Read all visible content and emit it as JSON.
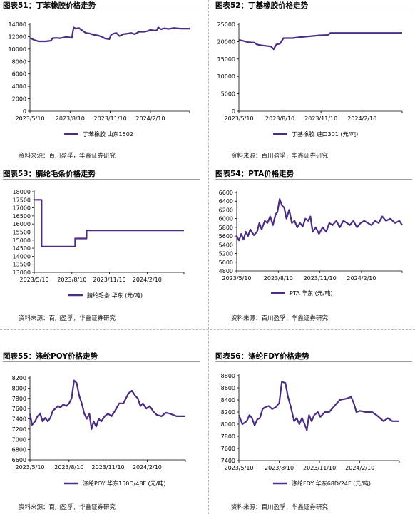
{
  "source_text": "资料来源：百川盈孚，华鑫证券研究",
  "series_color": "#4b2e83",
  "chart_data": [
    {
      "id": "c51",
      "type": "line",
      "title": "图表51：丁苯橡胶价格走势",
      "legend": "丁苯橡胶 山东1502",
      "ylim": [
        0,
        14000
      ],
      "yticks": [
        0,
        2000,
        4000,
        6000,
        8000,
        10000,
        12000,
        14000
      ],
      "xticks": [
        "2023/5/10",
        "2023/8/10",
        "2023/11/10",
        "2024/2/10"
      ],
      "xtick_idx": [
        0,
        92,
        184,
        276
      ],
      "x_len": 366,
      "points": [
        [
          0,
          11800
        ],
        [
          10,
          11450
        ],
        [
          20,
          11250
        ],
        [
          35,
          11250
        ],
        [
          48,
          11350
        ],
        [
          52,
          11750
        ],
        [
          60,
          11800
        ],
        [
          70,
          11750
        ],
        [
          82,
          11950
        ],
        [
          90,
          11900
        ],
        [
          96,
          11800
        ],
        [
          100,
          13500
        ],
        [
          105,
          13300
        ],
        [
          112,
          13400
        ],
        [
          120,
          13000
        ],
        [
          128,
          12600
        ],
        [
          138,
          12500
        ],
        [
          146,
          12300
        ],
        [
          156,
          12200
        ],
        [
          166,
          11950
        ],
        [
          172,
          11700
        ],
        [
          182,
          11600
        ],
        [
          186,
          12300
        ],
        [
          192,
          12500
        ],
        [
          198,
          12600
        ],
        [
          205,
          12100
        ],
        [
          214,
          12400
        ],
        [
          224,
          12500
        ],
        [
          232,
          12600
        ],
        [
          240,
          12400
        ],
        [
          250,
          12800
        ],
        [
          262,
          12800
        ],
        [
          270,
          12900
        ],
        [
          276,
          13100
        ],
        [
          284,
          13000
        ],
        [
          290,
          13000
        ],
        [
          294,
          13500
        ],
        [
          300,
          13200
        ],
        [
          308,
          13350
        ],
        [
          318,
          13250
        ],
        [
          330,
          13400
        ],
        [
          345,
          13300
        ],
        [
          366,
          13300
        ]
      ]
    },
    {
      "id": "c52",
      "type": "line",
      "title": "图表52：丁基橡胶价格走势",
      "legend": "丁基橡胶 进口301 (元/吨)",
      "ylim": [
        0,
        25000
      ],
      "yticks": [
        0,
        5000,
        10000,
        15000,
        20000,
        25000
      ],
      "xticks": [
        "2023/5/10",
        "2023/8/10",
        "2023/11/10",
        "2024/2/10"
      ],
      "xtick_idx": [
        0,
        92,
        184,
        276
      ],
      "x_len": 366,
      "points": [
        [
          0,
          20500
        ],
        [
          10,
          20200
        ],
        [
          22,
          19800
        ],
        [
          35,
          19700
        ],
        [
          40,
          19200
        ],
        [
          48,
          19000
        ],
        [
          60,
          18800
        ],
        [
          72,
          18600
        ],
        [
          78,
          17800
        ],
        [
          84,
          19200
        ],
        [
          92,
          19400
        ],
        [
          100,
          21000
        ],
        [
          120,
          21000
        ],
        [
          132,
          21200
        ],
        [
          180,
          21800
        ],
        [
          200,
          21900
        ],
        [
          205,
          22500
        ],
        [
          366,
          22500
        ]
      ]
    },
    {
      "id": "c53",
      "type": "line",
      "title": "图表53：腈纶毛条价格走势",
      "legend": "腈纶毛条 华东 (元/吨)",
      "ylim": [
        13000,
        18000
      ],
      "yticks": [
        13000,
        13500,
        14000,
        14500,
        15000,
        15500,
        16000,
        16500,
        17000,
        17500,
        18000
      ],
      "xticks": [
        "2023/5/10",
        "2023/8/10",
        "2023/11/10",
        "2024/2/10"
      ],
      "xtick_idx": [
        0,
        92,
        184,
        276
      ],
      "x_len": 366,
      "points": [
        [
          0,
          17500
        ],
        [
          18,
          17500
        ],
        [
          18,
          14600
        ],
        [
          100,
          14600
        ],
        [
          100,
          15100
        ],
        [
          128,
          15100
        ],
        [
          128,
          15600
        ],
        [
          366,
          15600
        ]
      ]
    },
    {
      "id": "c54",
      "type": "line",
      "title": "图表54：PTA价格走势",
      "legend": "PTA 华东 (元/吨)",
      "ylim": [
        4800,
        6600
      ],
      "yticks": [
        4800,
        5000,
        5200,
        5400,
        5600,
        5800,
        6000,
        6200,
        6400,
        6600
      ],
      "xticks": [
        "2023/5/10",
        "2023/8/10",
        "2023/11/10",
        "2024/2/10"
      ],
      "xtick_idx": [
        0,
        92,
        184,
        276
      ],
      "x_len": 366,
      "points": [
        [
          0,
          5600
        ],
        [
          5,
          5500
        ],
        [
          10,
          5650
        ],
        [
          15,
          5520
        ],
        [
          20,
          5700
        ],
        [
          25,
          5600
        ],
        [
          30,
          5750
        ],
        [
          38,
          5620
        ],
        [
          45,
          5700
        ],
        [
          50,
          5900
        ],
        [
          55,
          5750
        ],
        [
          62,
          5950
        ],
        [
          68,
          5900
        ],
        [
          74,
          6050
        ],
        [
          80,
          5850
        ],
        [
          86,
          6100
        ],
        [
          90,
          6150
        ],
        [
          95,
          6450
        ],
        [
          100,
          6300
        ],
        [
          105,
          6250
        ],
        [
          110,
          6000
        ],
        [
          116,
          6200
        ],
        [
          122,
          5900
        ],
        [
          128,
          5950
        ],
        [
          134,
          5800
        ],
        [
          140,
          5900
        ],
        [
          146,
          5820
        ],
        [
          152,
          6000
        ],
        [
          158,
          5950
        ],
        [
          163,
          6050
        ],
        [
          168,
          5700
        ],
        [
          175,
          5800
        ],
        [
          182,
          5650
        ],
        [
          190,
          5800
        ],
        [
          198,
          5700
        ],
        [
          205,
          5900
        ],
        [
          212,
          5850
        ],
        [
          220,
          5950
        ],
        [
          228,
          5800
        ],
        [
          236,
          5950
        ],
        [
          244,
          5900
        ],
        [
          250,
          5850
        ],
        [
          258,
          5950
        ],
        [
          266,
          5800
        ],
        [
          274,
          5900
        ],
        [
          282,
          5950
        ],
        [
          290,
          5900
        ],
        [
          298,
          5850
        ],
        [
          306,
          5950
        ],
        [
          314,
          5900
        ],
        [
          322,
          6050
        ],
        [
          330,
          5950
        ],
        [
          340,
          6000
        ],
        [
          350,
          5900
        ],
        [
          360,
          5950
        ],
        [
          366,
          5850
        ]
      ]
    },
    {
      "id": "c55",
      "type": "line",
      "title": "图表55：涤纶POY价格走势",
      "legend": "涤纶POY 华东150D/48F (元/吨)",
      "ylim": [
        6600,
        8200
      ],
      "yticks": [
        6600,
        6800,
        7000,
        7200,
        7400,
        7600,
        7800,
        8000,
        8200
      ],
      "xticks": [
        "2023/5/10",
        "2023/8/10",
        "2023/11/10",
        "2024/2/10"
      ],
      "xtick_idx": [
        0,
        92,
        184,
        276
      ],
      "x_len": 366,
      "points": [
        [
          0,
          7500
        ],
        [
          5,
          7280
        ],
        [
          12,
          7350
        ],
        [
          18,
          7450
        ],
        [
          24,
          7500
        ],
        [
          30,
          7350
        ],
        [
          36,
          7420
        ],
        [
          42,
          7350
        ],
        [
          48,
          7420
        ],
        [
          54,
          7560
        ],
        [
          60,
          7600
        ],
        [
          66,
          7650
        ],
        [
          72,
          7620
        ],
        [
          78,
          7680
        ],
        [
          86,
          7650
        ],
        [
          92,
          7700
        ],
        [
          98,
          7800
        ],
        [
          104,
          8150
        ],
        [
          110,
          8100
        ],
        [
          116,
          7850
        ],
        [
          122,
          7700
        ],
        [
          128,
          7500
        ],
        [
          134,
          7400
        ],
        [
          140,
          7500
        ],
        [
          145,
          7200
        ],
        [
          150,
          7350
        ],
        [
          156,
          7250
        ],
        [
          162,
          7400
        ],
        [
          168,
          7350
        ],
        [
          176,
          7450
        ],
        [
          184,
          7500
        ],
        [
          192,
          7450
        ],
        [
          200,
          7550
        ],
        [
          210,
          7700
        ],
        [
          220,
          7700
        ],
        [
          232,
          7900
        ],
        [
          240,
          7950
        ],
        [
          248,
          7850
        ],
        [
          254,
          7800
        ],
        [
          260,
          7650
        ],
        [
          266,
          7700
        ],
        [
          274,
          7600
        ],
        [
          282,
          7650
        ],
        [
          290,
          7550
        ],
        [
          298,
          7480
        ],
        [
          310,
          7450
        ],
        [
          320,
          7520
        ],
        [
          330,
          7500
        ],
        [
          345,
          7450
        ],
        [
          366,
          7450
        ]
      ]
    },
    {
      "id": "c56",
      "type": "line",
      "title": "图表56：涤纶FDY价格走势",
      "legend": "涤纶FDY 华东68D/24F (元/吨)",
      "ylim": [
        7400,
        8800
      ],
      "yticks": [
        7400,
        7600,
        7800,
        8000,
        8200,
        8400,
        8600,
        8800
      ],
      "xticks": [
        "2023/5/10",
        "2023/8/10",
        "2023/11/10",
        "2024/2/10"
      ],
      "xtick_idx": [
        0,
        92,
        184,
        276
      ],
      "x_len": 366,
      "points": [
        [
          0,
          8150
        ],
        [
          8,
          8000
        ],
        [
          18,
          8050
        ],
        [
          24,
          8150
        ],
        [
          30,
          8100
        ],
        [
          36,
          7980
        ],
        [
          42,
          8080
        ],
        [
          48,
          8100
        ],
        [
          54,
          8250
        ],
        [
          60,
          8280
        ],
        [
          68,
          8300
        ],
        [
          76,
          8250
        ],
        [
          84,
          8280
        ],
        [
          92,
          8350
        ],
        [
          98,
          8700
        ],
        [
          106,
          8680
        ],
        [
          112,
          8450
        ],
        [
          118,
          8300
        ],
        [
          126,
          8050
        ],
        [
          132,
          8100
        ],
        [
          138,
          8000
        ],
        [
          144,
          8100
        ],
        [
          150,
          8000
        ],
        [
          155,
          7900
        ],
        [
          160,
          8150
        ],
        [
          166,
          8050
        ],
        [
          172,
          8150
        ],
        [
          180,
          8200
        ],
        [
          186,
          8120
        ],
        [
          196,
          8200
        ],
        [
          206,
          8200
        ],
        [
          218,
          8300
        ],
        [
          230,
          8400
        ],
        [
          244,
          8420
        ],
        [
          256,
          8450
        ],
        [
          262,
          8350
        ],
        [
          268,
          8200
        ],
        [
          276,
          8220
        ],
        [
          290,
          8200
        ],
        [
          304,
          8200
        ],
        [
          314,
          8150
        ],
        [
          322,
          8100
        ],
        [
          330,
          8050
        ],
        [
          340,
          8100
        ],
        [
          350,
          8050
        ],
        [
          366,
          8050
        ]
      ]
    }
  ]
}
